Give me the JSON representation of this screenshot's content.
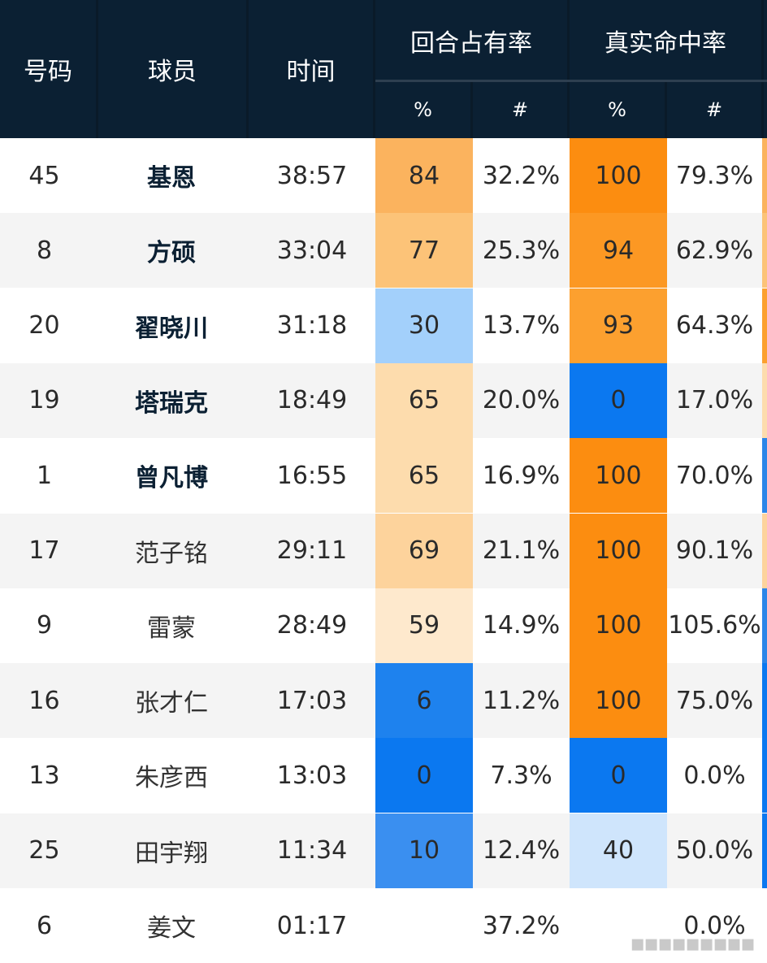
{
  "table": {
    "columns": {
      "number": "号码",
      "player": "球员",
      "time": "时间",
      "usage_group": "回合占有率",
      "ts_group": "真实命中率",
      "usage_pct": "%",
      "usage_val": "#",
      "ts_pct": "%",
      "ts_val": "#"
    },
    "rows": [
      {
        "number": "45",
        "player": "基恩",
        "time": "38:57",
        "usage_pct": "84",
        "usage_val": "32.2%",
        "ts_pct": "100",
        "ts_val": "79.3%",
        "starter": true,
        "usage_color": "#fbb35e",
        "ts_color": "#fc8d10",
        "edge_color": "#fbb35e"
      },
      {
        "number": "8",
        "player": "方硕",
        "time": "33:04",
        "usage_pct": "77",
        "usage_val": "25.3%",
        "ts_pct": "94",
        "ts_val": "62.9%",
        "starter": true,
        "usage_color": "#fcc378",
        "ts_color": "#fc9823",
        "edge_color": "#fcc378"
      },
      {
        "number": "20",
        "player": "翟晓川",
        "time": "31:18",
        "usage_pct": "30",
        "usage_val": "13.7%",
        "ts_pct": "93",
        "ts_val": "64.3%",
        "starter": true,
        "usage_color": "#a3d0fb",
        "ts_color": "#fca02f",
        "edge_color": "#fca02f"
      },
      {
        "number": "19",
        "player": "塔瑞克",
        "time": "18:49",
        "usage_pct": "65",
        "usage_val": "20.0%",
        "ts_pct": "0",
        "ts_val": "17.0%",
        "starter": true,
        "usage_color": "#fddcad",
        "ts_color": "#0b78f0",
        "edge_color": "#fddcad"
      },
      {
        "number": "1",
        "player": "曾凡博",
        "time": "16:55",
        "usage_pct": "65",
        "usage_val": "16.9%",
        "ts_pct": "100",
        "ts_val": "70.0%",
        "starter": true,
        "usage_color": "#fddcad",
        "ts_color": "#fc8d10",
        "edge_color": "#2c86e8"
      },
      {
        "number": "17",
        "player": "范子铭",
        "time": "29:11",
        "usage_pct": "69",
        "usage_val": "21.1%",
        "ts_pct": "100",
        "ts_val": "90.1%",
        "starter": false,
        "usage_color": "#fdd39c",
        "ts_color": "#fc8d10",
        "edge_color": "#fdd39c"
      },
      {
        "number": "9",
        "player": "雷蒙",
        "time": "28:49",
        "usage_pct": "59",
        "usage_val": "14.9%",
        "ts_pct": "100",
        "ts_val": "105.6%",
        "starter": false,
        "usage_color": "#fee9cd",
        "ts_color": "#fc8d10",
        "edge_color": "#2c86e8"
      },
      {
        "number": "16",
        "player": "张才仁",
        "time": "17:03",
        "usage_pct": "6",
        "usage_val": "11.2%",
        "ts_pct": "100",
        "ts_val": "75.0%",
        "starter": false,
        "usage_color": "#1e82ee",
        "ts_color": "#fc8d10",
        "edge_color": "#0b78f0"
      },
      {
        "number": "13",
        "player": "朱彦西",
        "time": "13:03",
        "usage_pct": "0",
        "usage_val": "7.3%",
        "ts_pct": "0",
        "ts_val": "0.0%",
        "starter": false,
        "usage_color": "#0b78f0",
        "ts_color": "#0b78f0",
        "edge_color": "#0b78f0"
      },
      {
        "number": "25",
        "player": "田宇翔",
        "time": "11:34",
        "usage_pct": "10",
        "usage_val": "12.4%",
        "ts_pct": "40",
        "ts_val": "50.0%",
        "starter": false,
        "usage_color": "#3a8ff0",
        "ts_color": "#cfe5fc",
        "edge_color": "#0b78f0"
      },
      {
        "number": "6",
        "player": "姜文",
        "time": "01:17",
        "usage_pct": "",
        "usage_val": "37.2%",
        "ts_pct": "",
        "ts_val": "0.0%",
        "starter": false,
        "usage_color": "",
        "ts_color": "",
        "edge_color": ""
      }
    ],
    "row_backgrounds": [
      "#ffffff",
      "#f4f4f4"
    ]
  },
  "watermark": "▪▪▪▪▪▪▪▪▪"
}
